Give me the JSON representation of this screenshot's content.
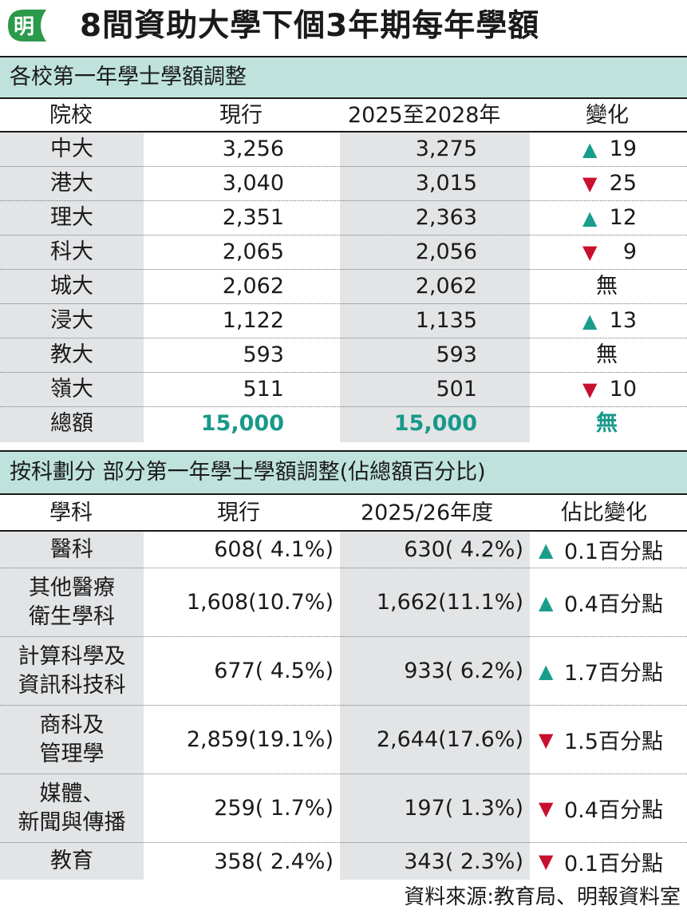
{
  "header": {
    "logo_char": "明",
    "title": "8間資助大學下個3年期每年學額"
  },
  "table1": {
    "section_title": "各校第一年學士學額調整",
    "headers": [
      "院校",
      "現行",
      "2025至2028年",
      "變化"
    ],
    "rows": [
      {
        "name": "中大",
        "current": "3,256",
        "new": "3,275",
        "dir": "up",
        "change": "19"
      },
      {
        "name": "港大",
        "current": "3,040",
        "new": "3,015",
        "dir": "down",
        "change": "25"
      },
      {
        "name": "理大",
        "current": "2,351",
        "new": "2,363",
        "dir": "up",
        "change": "12"
      },
      {
        "name": "科大",
        "current": "2,065",
        "new": "2,056",
        "dir": "down",
        "change": "9"
      },
      {
        "name": "城大",
        "current": "2,062",
        "new": "2,062",
        "dir": "none",
        "change": "無"
      },
      {
        "name": "浸大",
        "current": "1,122",
        "new": "1,135",
        "dir": "up",
        "change": "13"
      },
      {
        "name": "教大",
        "current": "593",
        "new": "593",
        "dir": "none",
        "change": "無"
      },
      {
        "name": "嶺大",
        "current": "511",
        "new": "501",
        "dir": "down",
        "change": "10"
      }
    ],
    "total": {
      "name": "總額",
      "current": "15,000",
      "new": "15,000",
      "change": "無"
    }
  },
  "table2": {
    "section_title": "按科劃分 部分第一年學士學額調整(佔總額百分比)",
    "headers": [
      "學科",
      "現行",
      "2025/26年度",
      "佔比變化"
    ],
    "rows": [
      {
        "lines": [
          "醫科"
        ],
        "current": "608(  4.1%)",
        "new": "630(  4.2%)",
        "dir": "up",
        "change": "0.1百分點"
      },
      {
        "lines": [
          "其他醫療",
          "衛生學科"
        ],
        "current": "1,608(10.7%)",
        "new": "1,662(11.1%)",
        "dir": "up",
        "change": "0.4百分點"
      },
      {
        "lines": [
          "計算科學及",
          "資訊科技科"
        ],
        "current": "677(  4.5%)",
        "new": "933(  6.2%)",
        "dir": "up",
        "change": "1.7百分點"
      },
      {
        "lines": [
          "商科及",
          "管理學"
        ],
        "current": "2,859(19.1%)",
        "new": "2,644(17.6%)",
        "dir": "down",
        "change": "1.5百分點"
      },
      {
        "lines": [
          "媒體、",
          "新聞與傳播"
        ],
        "current": "259(  1.7%)",
        "new": "197(  1.3%)",
        "dir": "down",
        "change": "0.4百分點"
      },
      {
        "lines": [
          "教育"
        ],
        "current": "358(  2.4%)",
        "new": "343(  2.3%)",
        "dir": "down",
        "change": "0.1百分點"
      }
    ]
  },
  "arrows": {
    "up": "▲",
    "down": "▼"
  },
  "source": "資料來源:教育局、明報資料室",
  "colors": {
    "accent_teal": "#17998a",
    "section_bg": "#bfe3dc",
    "band_grey": "#e2e4e6",
    "down_red": "#c8102e"
  }
}
